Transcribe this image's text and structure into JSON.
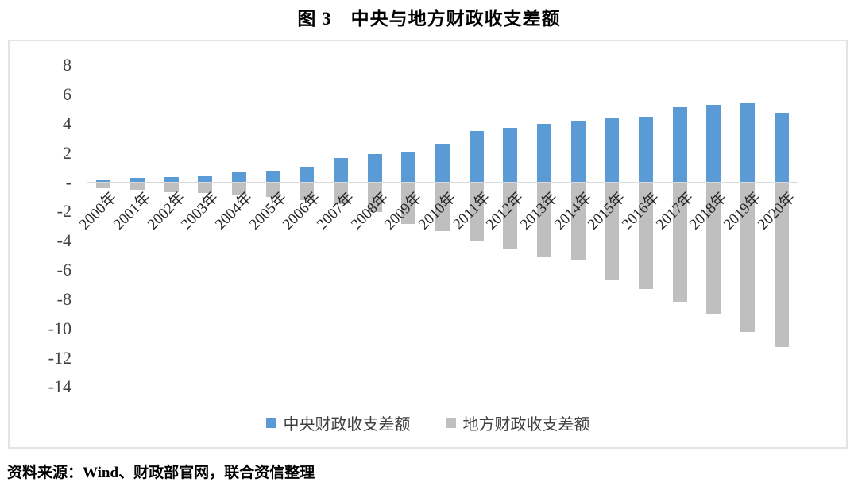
{
  "title": "图 3　中央与地方财政收支差额",
  "source_note": "资料来源：Wind、财政部官网，联合资信整理",
  "colors": {
    "central_series": "#5B9BD5",
    "local_series": "#BFBFBF",
    "axis_line": "#D9D9D9",
    "chart_border": "#E3E3E3",
    "tick_text": "#404040"
  },
  "legend": {
    "items": [
      {
        "label": "中央财政收支差额",
        "color": "#5B9BD5"
      },
      {
        "label": "地方财政收支差额",
        "color": "#BFBFBF"
      }
    ]
  },
  "chart_data": {
    "type": "bar",
    "title": "图 3　中央与地方财政收支差额",
    "categories": [
      "2000年",
      "2001年",
      "2002年",
      "2003年",
      "2004年",
      "2005年",
      "2006年",
      "2007年",
      "2008年",
      "2009年",
      "2010年",
      "2011年",
      "2012年",
      "2013年",
      "2014年",
      "2015年",
      "2016年",
      "2017年",
      "2018年",
      "2019年",
      "2020年"
    ],
    "series": [
      {
        "name": "中央财政收支差额",
        "color": "#5B9BD5",
        "values": [
          0.15,
          0.28,
          0.36,
          0.44,
          0.66,
          0.78,
          1.05,
          1.63,
          1.93,
          2.06,
          2.65,
          3.48,
          3.74,
          3.97,
          4.19,
          4.37,
          4.5,
          5.13,
          5.28,
          5.42,
          4.77
        ]
      },
      {
        "name": "地方财政收支差额",
        "color": "#BFBFBF",
        "values": [
          -0.4,
          -0.53,
          -0.68,
          -0.74,
          -0.87,
          -1.0,
          -1.21,
          -1.5,
          -2.06,
          -2.84,
          -3.33,
          -4.02,
          -4.61,
          -5.07,
          -5.34,
          -6.73,
          -7.3,
          -8.17,
          -9.03,
          -10.26,
          -11.25
        ]
      }
    ],
    "xlabel": "",
    "ylabel": "",
    "ylim": [
      -14,
      8
    ],
    "ytick_values": [
      8,
      6,
      4,
      2,
      0,
      -2,
      -4,
      -6,
      -8,
      -10,
      -12,
      -14
    ],
    "ytick_labels": [
      "8",
      "6",
      "4",
      "2",
      "-",
      "-2",
      "-4",
      "-6",
      "-8",
      "-10",
      "-12",
      "-14"
    ],
    "grid": false,
    "bar_style": "stacked-diverging",
    "legend_position": "bottom-center",
    "x_tick_rotation_deg": -45
  }
}
